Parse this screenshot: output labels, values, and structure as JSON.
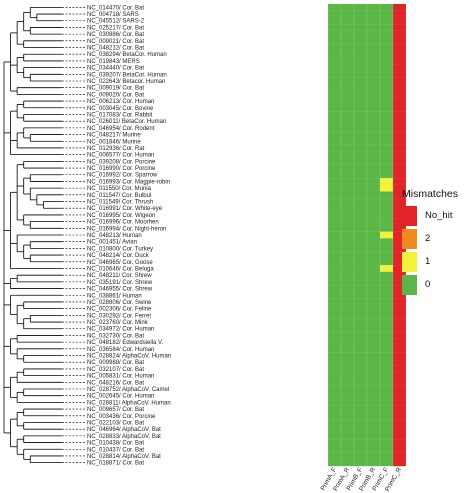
{
  "legend": {
    "title": "Mismatches",
    "items": [
      {
        "label": "No_hit",
        "color": "#e0242a"
      },
      {
        "label": "2",
        "color": "#f08a1c"
      },
      {
        "label": "1",
        "color": "#f2f23a"
      },
      {
        "label": "0",
        "color": "#5cb846"
      }
    ]
  },
  "columns": [
    "PrimA_F",
    "PrimA_R",
    "PrimB_F",
    "PrimB_R",
    "PrimC_F",
    "PrimC_R"
  ],
  "taxa": [
    "NC_014470/ Cor. Bat",
    "NC_004718/ SARS",
    "NC_045512/ SARS-2",
    "NC_025217/ Cor. Bat",
    "NC_030886/ Cor. Bat",
    "NC_009021/ Cor. Bat",
    "NC_048212/ Cor. Bat",
    "NC_038294/ BetaCor. Human",
    "NC_019843/ MERS",
    "NC_034440/ Cor. Bat",
    "NC_039207/ BetaCor. Human",
    "NC_022643/ Betacor. Human",
    "NC_009019/ Cor. Bat",
    "NC_009020/ Cor. Bat",
    "NC_006213/ Cor. Human",
    "NC_003045/ Cor. Bovine",
    "NC_017083/ Cor. Rabbit",
    "NC_026011/ BetaCor. Human",
    "NC_046954/ Cor. Rodent",
    "NC_048217/ Murine",
    "NC_001846/ Murine",
    "NC_012936/ Cor. Rat",
    "NC_006577/ Cor. Human",
    "NC_039208/ Cor. Porcine",
    "NC_016990/ Cor. Porcine",
    "NC_016992/ Cor. Sparrow",
    "NC_016993/ Cor. Magpie-robin",
    "NC_011550/ Cor. Munia",
    "NC_011547/ Cor. Bulbul",
    "NC_011549/ Cor. Thrush",
    "NC_016991/ Cor. White-eye",
    "NC_016995/ Cor. Wigeon",
    "NC_016996/ Cor. Moorhen",
    "NC_016994/ Cor. Night-heron",
    "NC_048213/ Human",
    "NC_001451/ Avian",
    "NC_010800/ Cor. Turkey",
    "NC_048214/ Cor. Duck",
    "NC_046965/ Cor. Goose",
    "NC_010646/ Cor. Beluga",
    "NC_048211/ Cor. Shrew",
    "NC_035191/ Cor. Shrew",
    "NC_046955/ Cor. Shrew",
    "NC_038861/ Human",
    "NC_028806/ Cor. Swine",
    "NC_002306/ Cor. Feline",
    "NC_030292/ Cor. Ferret",
    "NC_023760/ Cor. Mink",
    "NC_034972/ Cor. Human",
    "NC_032730/ Cor. Bat",
    "NC_048182/ Edwardsiella V.",
    "NC_036584/ Cor. Human",
    "NC_028824/ AlphaCoV. Human",
    "NC_009988/ Cor. Bat",
    "NC_032107/ Cor. Bat",
    "NC_005831/ Cor. Human",
    "NC_048216/ Cor. Bat",
    "NC_028752/ AlphaCoV. Camel",
    "NC_002645/ Cor. Human",
    "NC_028811/ AlphaCoV. Human",
    "NC_009657/ Cor. Bat",
    "NC_003436/ Cor. Porcine",
    "NC_022103/ Cor. Bat",
    "NC_046964/ AlphaCoV. Bat",
    "NC_028833/ AlphaCoV. Bat",
    "NC_010438/ Cor. Bat",
    "NC_010437/ Cor. Bat",
    "NC_028814/ AlphaCoV. Bat",
    "NC_018871/ Cor. Bat"
  ],
  "matrix": [
    [
      0,
      0,
      0,
      0,
      0,
      3
    ],
    [
      0,
      0,
      0,
      0,
      0,
      3
    ],
    [
      0,
      0,
      0,
      0,
      0,
      3
    ],
    [
      0,
      0,
      0,
      0,
      0,
      3
    ],
    [
      0,
      0,
      0,
      0,
      0,
      3
    ],
    [
      0,
      0,
      0,
      0,
      0,
      3
    ],
    [
      0,
      0,
      0,
      0,
      0,
      3
    ],
    [
      0,
      0,
      0,
      0,
      0,
      3
    ],
    [
      0,
      0,
      0,
      0,
      0,
      3
    ],
    [
      0,
      0,
      0,
      0,
      0,
      3
    ],
    [
      0,
      0,
      0,
      0,
      0,
      3
    ],
    [
      0,
      0,
      0,
      0,
      0,
      3
    ],
    [
      0,
      0,
      0,
      0,
      0,
      3
    ],
    [
      0,
      0,
      0,
      0,
      0,
      3
    ],
    [
      0,
      0,
      0,
      0,
      0,
      3
    ],
    [
      0,
      0,
      0,
      0,
      0,
      3
    ],
    [
      0,
      0,
      0,
      0,
      0,
      3
    ],
    [
      0,
      0,
      0,
      0,
      0,
      3
    ],
    [
      0,
      0,
      0,
      0,
      0,
      3
    ],
    [
      0,
      0,
      0,
      0,
      0,
      3
    ],
    [
      0,
      0,
      0,
      0,
      0,
      3
    ],
    [
      0,
      0,
      0,
      0,
      0,
      3
    ],
    [
      0,
      0,
      0,
      0,
      0,
      3
    ],
    [
      0,
      0,
      0,
      0,
      0,
      3
    ],
    [
      0,
      0,
      0,
      0,
      0,
      3
    ],
    [
      0,
      0,
      0,
      0,
      0,
      3
    ],
    [
      0,
      0,
      0,
      0,
      1,
      3
    ],
    [
      0,
      0,
      0,
      0,
      1,
      3
    ],
    [
      0,
      0,
      0,
      0,
      0,
      3
    ],
    [
      0,
      0,
      0,
      0,
      0,
      3
    ],
    [
      0,
      0,
      0,
      0,
      0,
      3
    ],
    [
      0,
      0,
      0,
      0,
      0,
      3
    ],
    [
      0,
      0,
      0,
      0,
      0,
      3
    ],
    [
      0,
      0,
      0,
      0,
      0,
      3
    ],
    [
      0,
      0,
      0,
      0,
      1,
      3
    ],
    [
      0,
      0,
      0,
      0,
      0,
      3
    ],
    [
      0,
      0,
      0,
      0,
      0,
      3
    ],
    [
      0,
      0,
      0,
      0,
      0,
      3
    ],
    [
      0,
      0,
      0,
      0,
      0,
      3
    ],
    [
      0,
      0,
      0,
      0,
      1,
      3
    ],
    [
      0,
      0,
      0,
      0,
      0,
      3
    ],
    [
      0,
      0,
      0,
      0,
      0,
      3
    ],
    [
      0,
      0,
      0,
      0,
      0,
      3
    ],
    [
      0,
      0,
      0,
      0,
      0,
      3
    ],
    [
      0,
      0,
      0,
      0,
      0,
      3
    ],
    [
      0,
      0,
      0,
      0,
      0,
      3
    ],
    [
      0,
      0,
      0,
      0,
      0,
      3
    ],
    [
      0,
      0,
      0,
      0,
      0,
      3
    ],
    [
      0,
      0,
      0,
      0,
      0,
      3
    ],
    [
      0,
      0,
      0,
      0,
      0,
      3
    ],
    [
      0,
      0,
      0,
      0,
      0,
      3
    ],
    [
      0,
      0,
      0,
      0,
      0,
      3
    ],
    [
      0,
      0,
      0,
      0,
      0,
      3
    ],
    [
      0,
      0,
      0,
      0,
      0,
      3
    ],
    [
      0,
      0,
      0,
      0,
      0,
      3
    ],
    [
      0,
      0,
      0,
      0,
      0,
      3
    ],
    [
      0,
      0,
      0,
      0,
      0,
      3
    ],
    [
      0,
      0,
      0,
      0,
      0,
      3
    ],
    [
      0,
      0,
      0,
      0,
      0,
      3
    ],
    [
      0,
      0,
      0,
      0,
      0,
      3
    ],
    [
      0,
      0,
      0,
      0,
      0,
      3
    ],
    [
      0,
      0,
      0,
      0,
      0,
      3
    ],
    [
      0,
      0,
      0,
      0,
      0,
      3
    ],
    [
      0,
      0,
      0,
      0,
      0,
      3
    ],
    [
      0,
      0,
      0,
      0,
      0,
      3
    ],
    [
      0,
      0,
      0,
      0,
      0,
      3
    ],
    [
      0,
      0,
      0,
      0,
      0,
      3
    ],
    [
      0,
      0,
      0,
      0,
      0,
      3
    ],
    [
      0,
      0,
      0,
      0,
      0,
      3
    ]
  ]
}
